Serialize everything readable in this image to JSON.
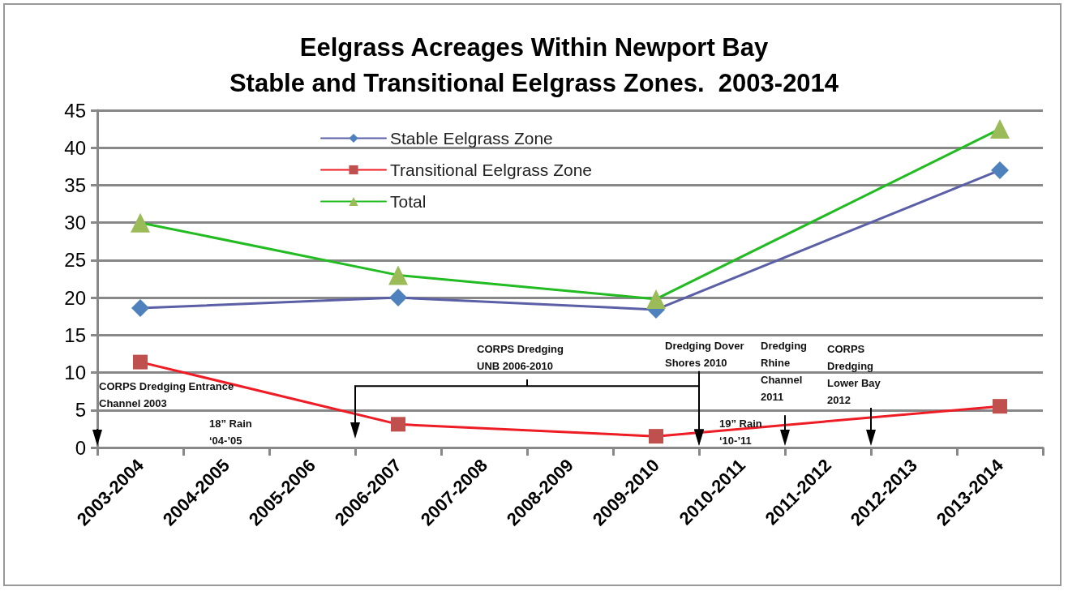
{
  "chart_data": {
    "type": "line",
    "title": "Eelgrass Acreages Within Newport Bay",
    "subtitle": "Stable and Transitional Eelgrass Zones.  2003-2014",
    "categories": [
      "2003-2004",
      "2004-2005",
      "2005-2006",
      "2006-2007",
      "2007-2008",
      "2008-2009",
      "2009-2010",
      "2010-2011",
      "2011-2012",
      "2012-2013",
      "2013-2014"
    ],
    "series": [
      {
        "name": "Stable Eelgrass Zone",
        "color": "#5b5fa6",
        "marker": "diamond",
        "values": [
          18.6,
          null,
          null,
          20,
          null,
          null,
          18.4,
          null,
          null,
          null,
          37
        ]
      },
      {
        "name": "Transitional Eelgrass Zone",
        "color": "#ee1c24",
        "marker": "square",
        "values": [
          11.4,
          null,
          null,
          3.1,
          null,
          null,
          1.5,
          null,
          null,
          null,
          5.5
        ]
      },
      {
        "name": "Total",
        "color": "#22bb22",
        "marker": "triangle",
        "values": [
          30,
          null,
          null,
          23,
          null,
          null,
          19.8,
          null,
          null,
          null,
          42.5
        ]
      }
    ],
    "ylim": [
      0,
      45
    ],
    "yticks": [
      0,
      5,
      10,
      15,
      20,
      25,
      30,
      35,
      40,
      45
    ],
    "grid": "y",
    "legend": "top left",
    "annotations": [
      "CORPS Dredging Entrance Channel 2003",
      "18” Rain ‘04-’05",
      "CORPS Dredging UNB 2006-2010",
      "Dredging Dover Shores 2010",
      "19” Rain ‘10-’11",
      "Dredging Rhine Channel 2011",
      "CORPS Dredging Lower Bay 2012"
    ]
  }
}
